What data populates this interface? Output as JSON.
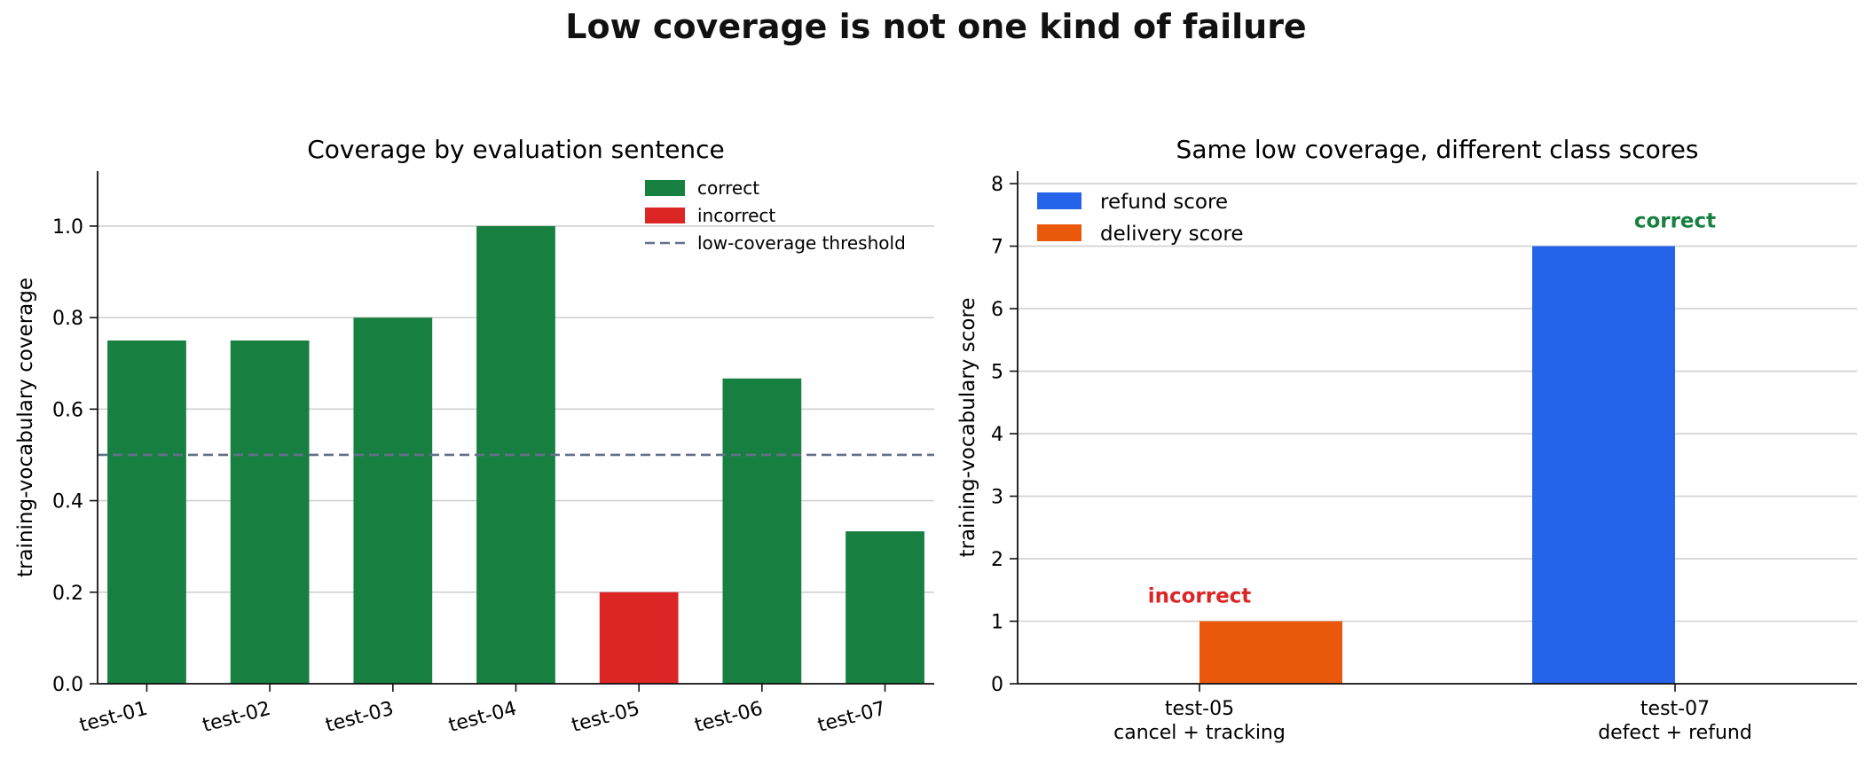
{
  "figure": {
    "title": "Low coverage is not one kind of failure"
  },
  "chart_data": [
    {
      "type": "bar",
      "title": "Coverage by evaluation sentence",
      "xlabel": "",
      "ylabel": "training-vocabulary coverage",
      "categories": [
        "test-01",
        "test-02",
        "test-03",
        "test-04",
        "test-05",
        "test-06",
        "test-07"
      ],
      "values": [
        0.75,
        0.75,
        0.8,
        1.0,
        0.2,
        0.667,
        0.333
      ],
      "outcome": [
        "correct",
        "correct",
        "correct",
        "correct",
        "incorrect",
        "correct",
        "correct"
      ],
      "threshold": 0.5,
      "ylim": [
        0,
        1.12
      ],
      "yticks": [
        "0.0",
        "0.2",
        "0.4",
        "0.6",
        "0.8",
        "1.0"
      ],
      "grid": "horizontal",
      "legend_position": "top-right",
      "legend": {
        "correct": "correct",
        "incorrect": "incorrect",
        "threshold": "low-coverage threshold"
      },
      "colors": {
        "correct": "#178040",
        "incorrect": "#dc2626",
        "threshold": "#64708a"
      }
    },
    {
      "type": "bar",
      "title": "Same low coverage, different class scores",
      "xlabel": "",
      "ylabel": "training-vocabulary score",
      "categories": [
        {
          "line1": "test-05",
          "line2": "cancel + tracking"
        },
        {
          "line1": "test-07",
          "line2": "defect + refund"
        }
      ],
      "series": [
        {
          "name": "refund score",
          "values": [
            0,
            7
          ],
          "color": "#2563eb"
        },
        {
          "name": "delivery score",
          "values": [
            1,
            0
          ],
          "color": "#ea580c"
        }
      ],
      "annotations": [
        {
          "text": "incorrect",
          "color": "#dc2626"
        },
        {
          "text": "correct",
          "color": "#178040"
        }
      ],
      "ylim": [
        0,
        8.2
      ],
      "yticks": [
        "0",
        "1",
        "2",
        "3",
        "4",
        "5",
        "6",
        "7",
        "8"
      ],
      "grid": "horizontal",
      "legend_position": "top-left"
    }
  ]
}
